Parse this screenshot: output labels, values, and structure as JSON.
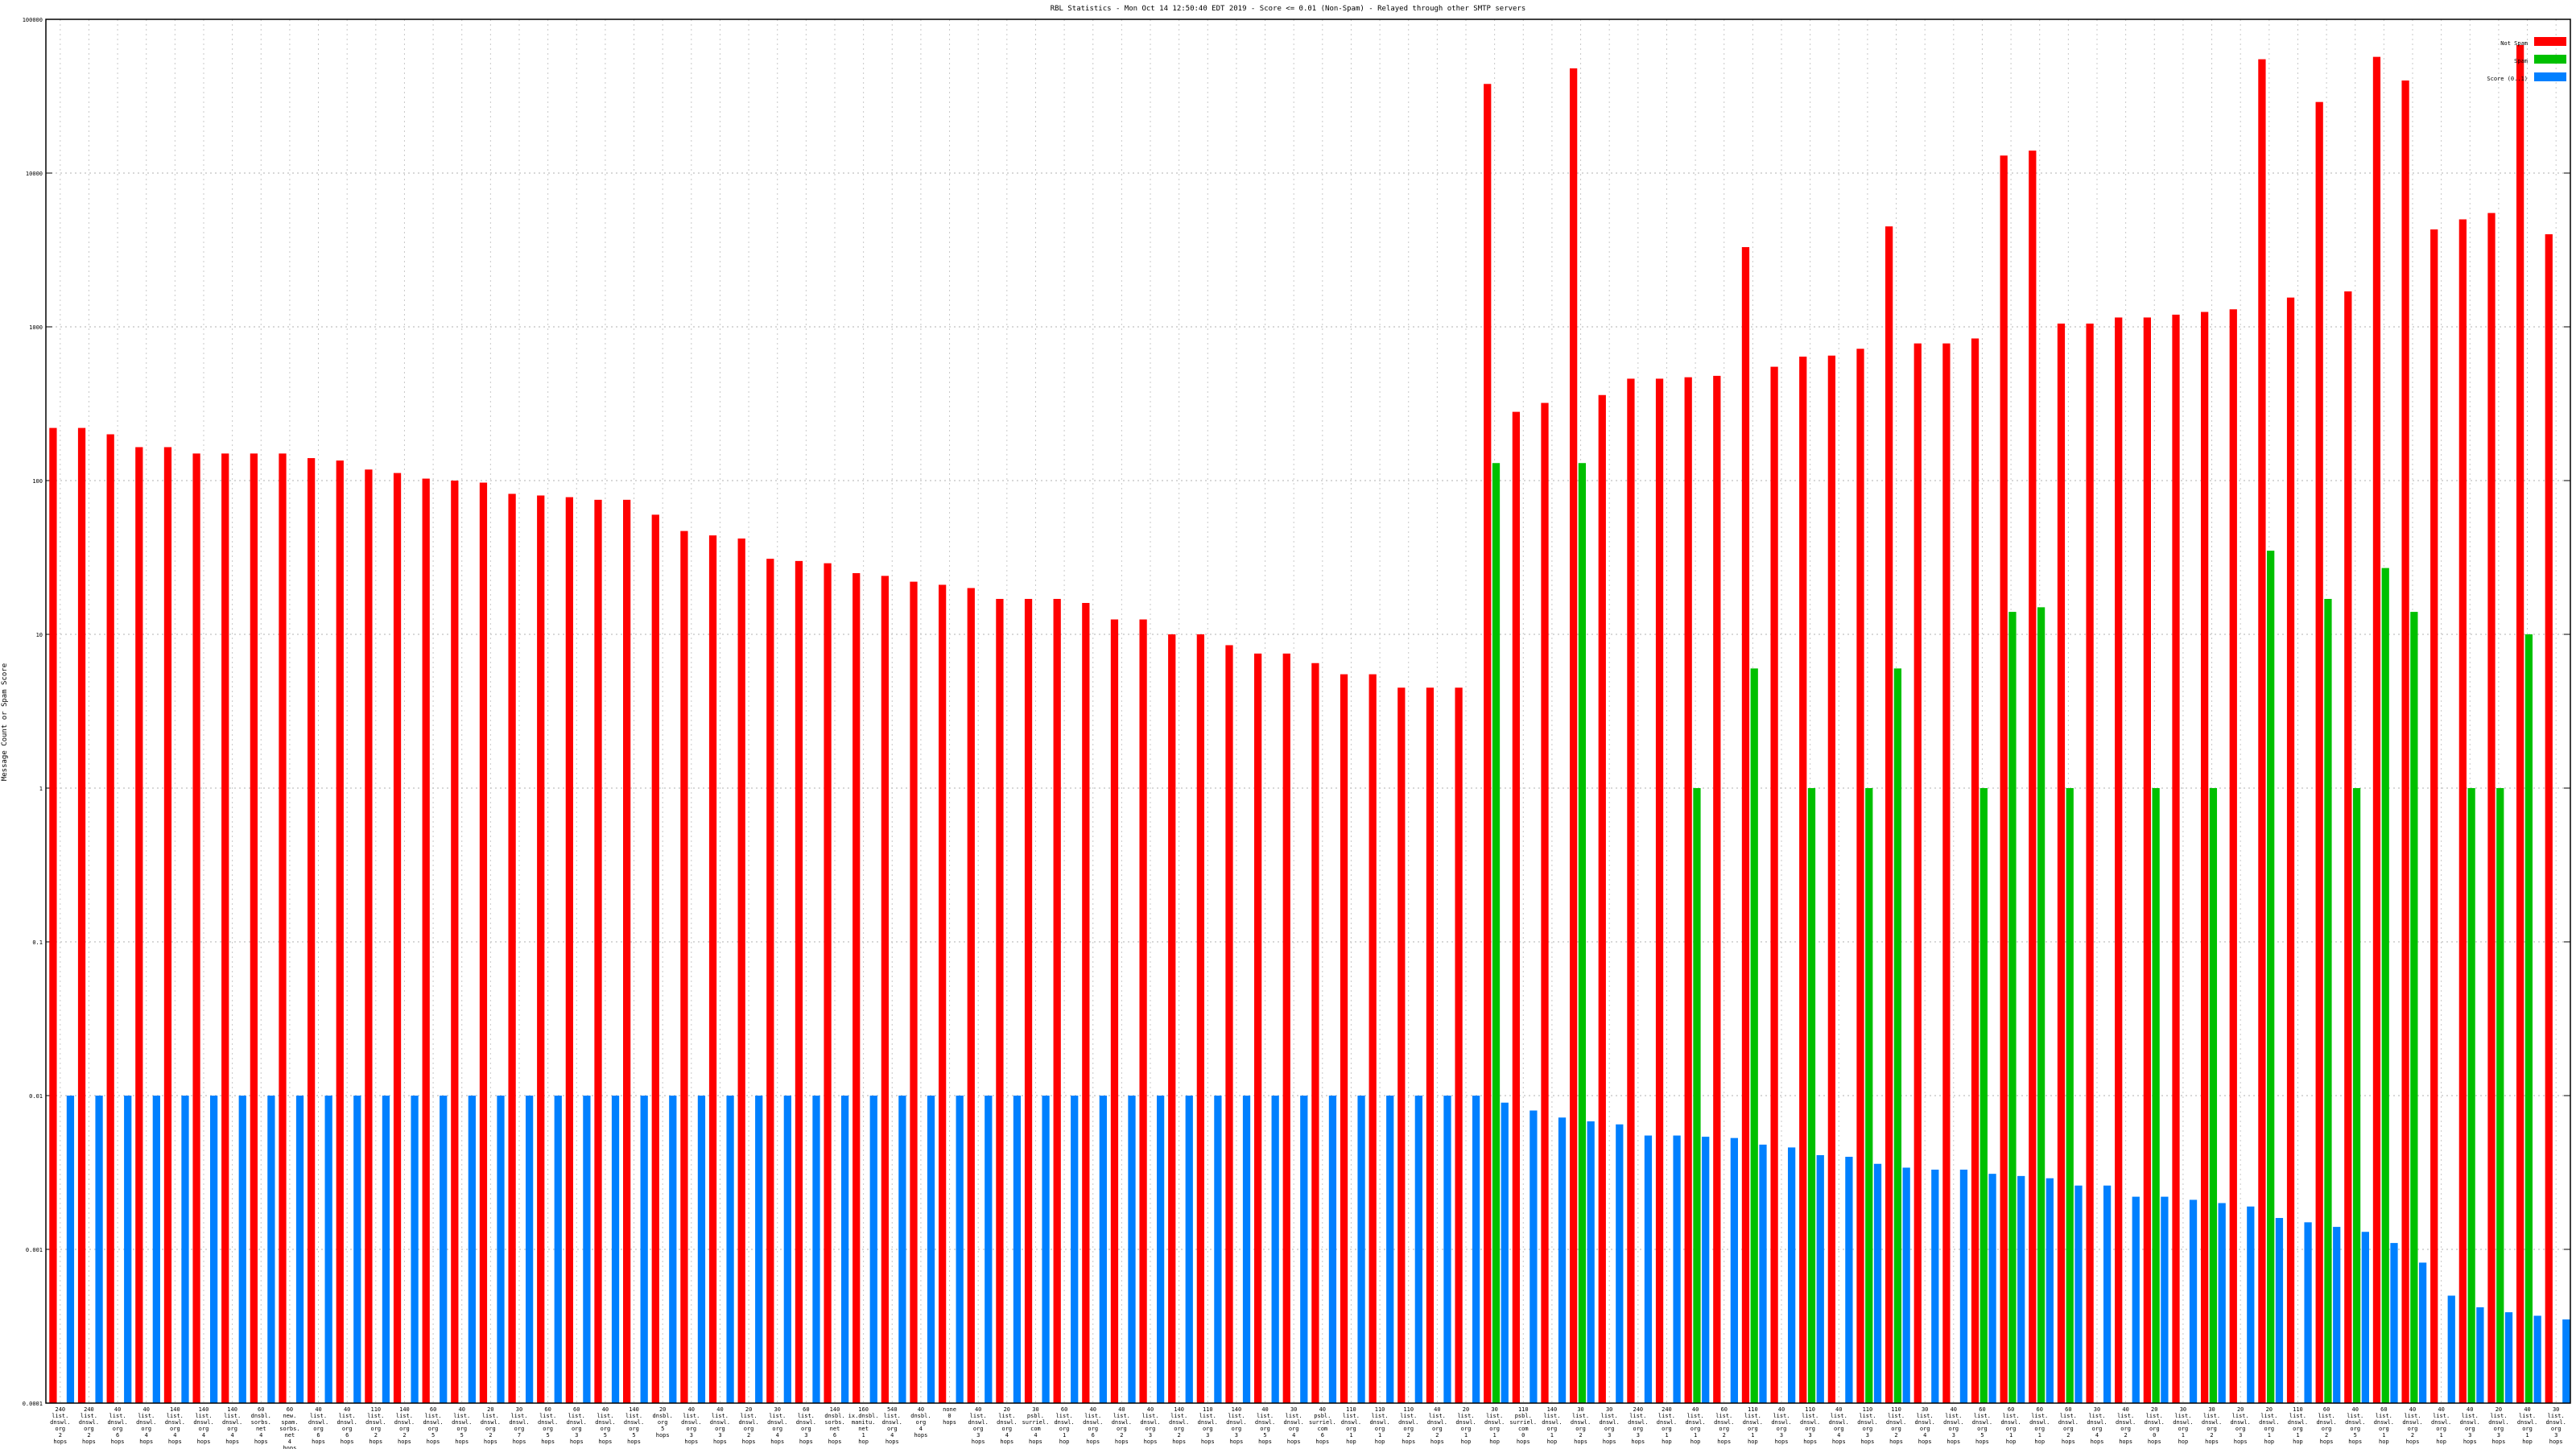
{
  "chart_data": {
    "type": "bar",
    "title": "RBL Statistics - Mon Oct 14 12:50:40 EDT 2019 - Score <= 0.01 (Non-Spam) - Relayed through other SMTP servers",
    "ylabel": "Message Count or Spam Score",
    "xlabel": "",
    "yscale": "log",
    "ylim": [
      0.0001,
      100000
    ],
    "y_ticks": [
      "0.0001",
      "0.001",
      "0.01",
      "0.1",
      "1",
      "10",
      "100",
      "1000",
      "10000",
      "100000"
    ],
    "grid": true,
    "legend_position": "top-right",
    "colors": {
      "not_spam": "#ff0000",
      "spam": "#00c000",
      "score": "#0080ff"
    },
    "legend": [
      "Not Spam",
      "Spam",
      "Score (0..1)"
    ],
    "categories": [
      "240 list. dnswl. org 2 hops",
      "240 list. dnswl. org 2 hops",
      "40 list. dnswl. org 6 hops",
      "40 list. dnswl. org 4 hops",
      "140 list. dnswl. org 4 hops",
      "140 list. dnswl. org 4 hops",
      "140 list. dnswl. org 4 hops",
      "60 dnsbl. sorbs. net 4 hops",
      "60 new. spam. sorbs. net 4 hops",
      "40 list. dnswl. org 6 hops",
      "40 list. dnswl. org 6 hops",
      "110 list. dnswl. org 2 hops",
      "140 list. dnswl. org 2 hops",
      "60 list. dnswl. org 5 hops",
      "40 list. dnswl. org 5 hops",
      "20 list. dnswl. org 2 hops",
      "30 list. dnswl. org 7 hops",
      "60 list. dnswl. org 5 hops",
      "60 list. dnswl. org 3 hops",
      "40 list. dnswl. org 5 hops",
      "140 list. dnswl. org 5 hops",
      "20 dnsbl. org 5 hops",
      "40 list. dnswl. org 3 hops",
      "40 list. dnswl. org 3 hops",
      "20 list. dnswl. org 2 hops",
      "30 list. dnswl. org 4 hops",
      "60 list. dnswl. org 3 hops",
      "140 dnsbl. sorbs. net 6 hops",
      "160 ix.dnsbl. manitu. net 1 hop",
      "540 list. dnswl. org 4 hops",
      "40 dnsbl. org 4 hops",
      "none 0 hops",
      "40 list. dnswl. org 3 hops",
      "20 list. dnswl. org 4 hops",
      "30 psbl. surriel. com 4 hops",
      "60 list. dnswl. org 1 hop",
      "40 list. dnswl. org 6 hops",
      "40 list. dnswl. org 2 hops",
      "40 list. dnswl. org 3 hops",
      "140 list. dnswl. org 2 hops",
      "110 list. dnswl. org 3 hops",
      "140 list. dnswl. org 3 hops",
      "40 list. dnswl. org 5 hops",
      "30 list. dnswl. org 4 hops",
      "40 psbl. surriel. com 6 hops",
      "110 list. dnswl. org 1 hop",
      "110 list. dnswl. org 1 hop",
      "110 list. dnswl. org 2 hops",
      "40 list. dnswl. org 2 hops",
      "20 list. dnswl. org 1 hop",
      "30 list. dnswl. org 1 hop",
      "110 psbl. surriel. com 0 hops",
      "140 list. dnswl. org 1 hop",
      "30 list. dnswl. org 2 hops",
      "30 list. dnswl. org 3 hops",
      "240 list. dnswl. org 3 hops",
      "240 list. dnswl. org 1 hop",
      "40 list. dnswl. org 1 hop",
      "60 list. dnswl. org 2 hops",
      "110 list. dnswl. org 1 hop",
      "40 list. dnswl. org 3 hops",
      "110 list. dnswl. org 3 hops",
      "40 list. dnswl. org 4 hops",
      "110 list. dnswl. org 3 hops",
      "110 list. dnswl. org 2 hops",
      "30 list. dnswl. org 4 hops",
      "40 list. dnswl. org 3 hops",
      "60 list. dnswl. org 5 hops",
      "60 list. dnswl. org 1 hop",
      "60 list. dnswl. org 1 hop",
      "60 list. dnswl. org 2 hops",
      "30 list. dnswl. org 4 hops",
      "40 list. dnswl. org 2 hops",
      "20 list. dnswl. org 0 hops",
      "30 list. dnswl. org 1 hop",
      "30 list. dnswl. org 2 hops",
      "20 list. dnswl. org 3 hops",
      "20 list. dnswl. org 1 hop",
      "110 list. dnswl. org 1 hop",
      "60 list. dnswl. org 2 hops",
      "40 list. dnswl. org 5 hops",
      "60 list. dnswl. org 1 hop",
      "40 list. dnswl. org 2 hops",
      "40 list. dnswl. org 1 hop",
      "40 list. dnswl. org 3 hops",
      "20 list. dnswl. org 3 hops",
      "40 list. dnswl. org 1 hop",
      "30 list. dnswl. org 3 hops"
    ],
    "series": [
      {
        "name": "Not Spam",
        "values": [
          220,
          220,
          200,
          165,
          165,
          150,
          150,
          150,
          150,
          140,
          135,
          118,
          112,
          103,
          100,
          97,
          82,
          80,
          78,
          75,
          75,
          60,
          47,
          44,
          42,
          31,
          30,
          29,
          25,
          24,
          22,
          21,
          20,
          17,
          17,
          17,
          16,
          12.5,
          12.5,
          10,
          10,
          8.5,
          7.5,
          7.5,
          6.5,
          5.5,
          5.5,
          4.5,
          4.5,
          4.5,
          38000,
          280,
          320,
          48000,
          360,
          460,
          460,
          470,
          480,
          3300,
          550,
          640,
          650,
          720,
          4500,
          780,
          780,
          840,
          13000,
          14000,
          1050,
          1050,
          1150,
          1150,
          1200,
          1250,
          1300,
          55000,
          1550,
          29000,
          1700,
          57000,
          40000,
          4300,
          5000,
          5500,
          68000,
          4000
        ]
      },
      {
        "name": "Spam",
        "values": [
          null,
          null,
          null,
          null,
          null,
          null,
          null,
          null,
          null,
          null,
          null,
          null,
          null,
          null,
          null,
          null,
          null,
          null,
          null,
          null,
          null,
          null,
          null,
          null,
          null,
          null,
          null,
          null,
          null,
          null,
          null,
          null,
          null,
          null,
          null,
          null,
          null,
          null,
          null,
          null,
          null,
          null,
          null,
          null,
          null,
          null,
          null,
          null,
          null,
          null,
          130,
          null,
          null,
          130,
          null,
          null,
          null,
          1,
          null,
          6,
          null,
          1,
          null,
          1,
          6,
          null,
          null,
          1,
          14,
          15,
          1,
          null,
          null,
          1,
          null,
          1,
          null,
          35,
          null,
          17,
          1,
          27,
          14,
          null,
          1,
          1,
          10,
          null
        ]
      },
      {
        "name": "Score (0..1)",
        "values": [
          0.01,
          0.01,
          0.01,
          0.01,
          0.01,
          0.01,
          0.01,
          0.01,
          0.01,
          0.01,
          0.01,
          0.01,
          0.01,
          0.01,
          0.01,
          0.01,
          0.01,
          0.01,
          0.01,
          0.01,
          0.01,
          0.01,
          0.01,
          0.01,
          0.01,
          0.01,
          0.01,
          0.01,
          0.01,
          0.01,
          0.01,
          0.01,
          0.01,
          0.01,
          0.01,
          0.01,
          0.01,
          0.01,
          0.01,
          0.01,
          0.01,
          0.01,
          0.01,
          0.01,
          0.01,
          0.01,
          0.01,
          0.01,
          0.01,
          0.01,
          0.009,
          0.008,
          0.0072,
          0.0068,
          0.0065,
          0.0055,
          0.0055,
          0.0054,
          0.0053,
          0.0048,
          0.0046,
          0.0041,
          0.004,
          0.0036,
          0.0034,
          0.0033,
          0.0033,
          0.0031,
          0.003,
          0.0029,
          0.0026,
          0.0026,
          0.0022,
          0.0022,
          0.0021,
          0.002,
          0.0019,
          0.0016,
          0.0015,
          0.0014,
          0.0013,
          0.0011,
          0.00082,
          0.0005,
          0.00042,
          0.00039,
          0.00037,
          0.00035
        ]
      }
    ]
  }
}
